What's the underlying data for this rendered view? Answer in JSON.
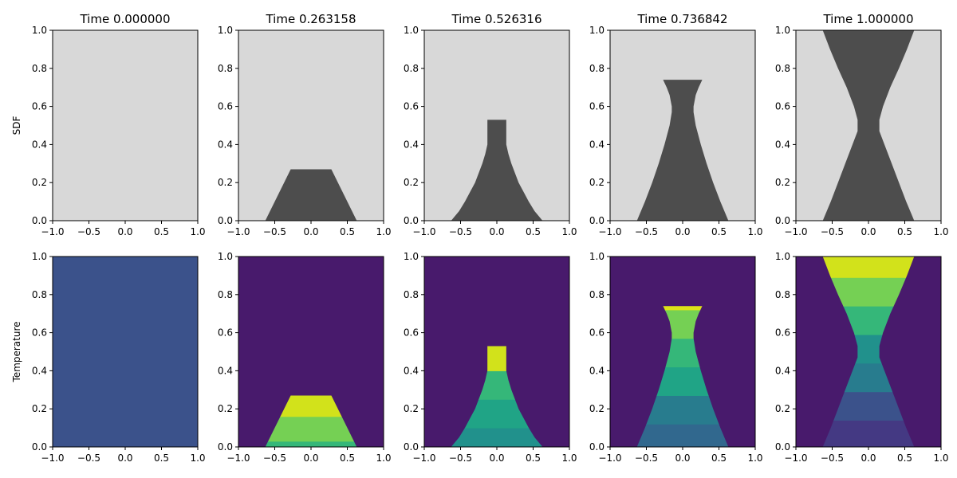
{
  "chart_data": {
    "type": "heatmap",
    "layout": "2 rows x 5 columns of small-multiple panels",
    "row_labels": [
      "SDF",
      "Temperature"
    ],
    "column_titles": [
      "Time 0.000000",
      "Time 0.263158",
      "Time 0.526316",
      "Time 0.736842",
      "Time 1.000000"
    ],
    "xlim": [
      -1.0,
      1.0
    ],
    "ylim": [
      0.0,
      1.0
    ],
    "x_ticks": [
      "−1.0",
      "−0.5",
      "0.0",
      "0.5",
      "1.0"
    ],
    "y_ticks": [
      "0.0",
      "0.2",
      "0.4",
      "0.6",
      "0.8",
      "1.0"
    ],
    "x_tick_values": [
      -1.0,
      -0.5,
      0.0,
      0.5,
      1.0
    ],
    "y_tick_values": [
      0.0,
      0.2,
      0.4,
      0.6,
      0.8,
      1.0
    ],
    "colors": {
      "sdf_background": "#d8d8d8",
      "sdf_solid": "#4d4d4d",
      "temp_background": "#481a6c",
      "temp_initial": "#3b528b",
      "temp_bands": [
        "#443983",
        "#3b528b",
        "#31688e",
        "#287c8e",
        "#21918c",
        "#20a486",
        "#35b779",
        "#75d054",
        "#bddf26",
        "#d2e21b",
        "#dde318"
      ]
    },
    "shapes": [
      {
        "time": 0.0,
        "height": 0.0,
        "profile": [],
        "temp_bands": [],
        "temp_fill": "#3b528b"
      },
      {
        "time": 0.263158,
        "height": 0.27,
        "profile": [
          [
            0.0,
            0.63
          ],
          [
            0.27,
            0.28
          ]
        ],
        "temp_bands": [
          {
            "y0": 0.0,
            "y1": 0.03,
            "color": "#35b779"
          },
          {
            "y0": 0.03,
            "y1": 0.16,
            "color": "#75d054"
          },
          {
            "y0": 0.16,
            "y1": 0.27,
            "color": "#d2e21b"
          }
        ]
      },
      {
        "time": 0.526316,
        "height": 0.53,
        "profile": [
          [
            0.0,
            0.63
          ],
          [
            0.05,
            0.52
          ],
          [
            0.1,
            0.44
          ],
          [
            0.15,
            0.37
          ],
          [
            0.2,
            0.3
          ],
          [
            0.25,
            0.25
          ],
          [
            0.3,
            0.2
          ],
          [
            0.35,
            0.16
          ],
          [
            0.4,
            0.13
          ],
          [
            0.45,
            0.13
          ],
          [
            0.53,
            0.13
          ]
        ],
        "temp_bands": [
          {
            "y0": 0.0,
            "y1": 0.1,
            "color": "#21918c"
          },
          {
            "y0": 0.1,
            "y1": 0.25,
            "color": "#20a486"
          },
          {
            "y0": 0.25,
            "y1": 0.4,
            "color": "#35b779"
          },
          {
            "y0": 0.4,
            "y1": 0.53,
            "color": "#d2e21b"
          }
        ]
      },
      {
        "time": 0.736842,
        "height": 0.74,
        "profile": [
          [
            0.0,
            0.63
          ],
          [
            0.1,
            0.52
          ],
          [
            0.2,
            0.42
          ],
          [
            0.3,
            0.33
          ],
          [
            0.4,
            0.25
          ],
          [
            0.5,
            0.18
          ],
          [
            0.57,
            0.15
          ],
          [
            0.6,
            0.15
          ],
          [
            0.66,
            0.18
          ],
          [
            0.7,
            0.22
          ],
          [
            0.74,
            0.27
          ]
        ],
        "temp_bands": [
          {
            "y0": 0.0,
            "y1": 0.12,
            "color": "#31688e"
          },
          {
            "y0": 0.12,
            "y1": 0.27,
            "color": "#287c8e"
          },
          {
            "y0": 0.27,
            "y1": 0.42,
            "color": "#20a486"
          },
          {
            "y0": 0.42,
            "y1": 0.57,
            "color": "#35b779"
          },
          {
            "y0": 0.57,
            "y1": 0.72,
            "color": "#75d054"
          },
          {
            "y0": 0.72,
            "y1": 0.74,
            "color": "#dde318"
          }
        ]
      },
      {
        "time": 1.0,
        "height": 1.0,
        "profile": [
          [
            0.0,
            0.63
          ],
          [
            0.1,
            0.52
          ],
          [
            0.2,
            0.42
          ],
          [
            0.3,
            0.32
          ],
          [
            0.4,
            0.22
          ],
          [
            0.47,
            0.15
          ],
          [
            0.53,
            0.15
          ],
          [
            0.6,
            0.2
          ],
          [
            0.7,
            0.3
          ],
          [
            0.8,
            0.42
          ],
          [
            0.9,
            0.53
          ],
          [
            1.0,
            0.63
          ]
        ],
        "temp_bands": [
          {
            "y0": 0.0,
            "y1": 0.14,
            "color": "#443983"
          },
          {
            "y0": 0.14,
            "y1": 0.29,
            "color": "#3b528b"
          },
          {
            "y0": 0.29,
            "y1": 0.44,
            "color": "#287c8e"
          },
          {
            "y0": 0.44,
            "y1": 0.59,
            "color": "#21918c"
          },
          {
            "y0": 0.59,
            "y1": 0.74,
            "color": "#35b779"
          },
          {
            "y0": 0.74,
            "y1": 0.89,
            "color": "#75d054"
          },
          {
            "y0": 0.89,
            "y1": 1.0,
            "color": "#d2e21b"
          }
        ]
      }
    ]
  }
}
